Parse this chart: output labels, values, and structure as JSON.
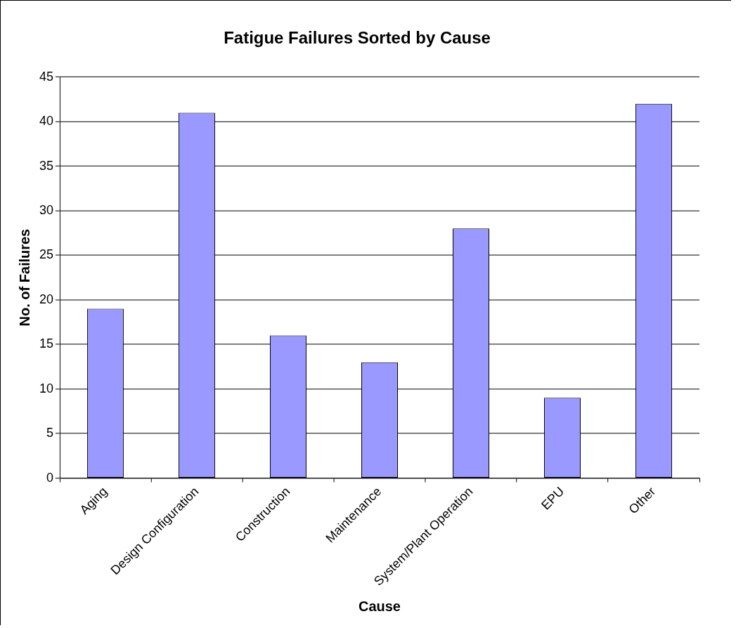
{
  "chart_data": {
    "type": "bar",
    "title": "Fatigue Failures Sorted by Cause",
    "xlabel": "Cause",
    "ylabel": "No. of Failures",
    "categories": [
      "Aging",
      "Design Configuration",
      "Construction",
      "Maintenance",
      "System/Plant Operation",
      "EPU",
      "Other"
    ],
    "values": [
      19,
      41,
      16,
      13,
      28,
      9,
      42
    ],
    "color": "#9999ff",
    "ylim": [
      0,
      45
    ],
    "yticks": [
      0,
      5,
      10,
      15,
      20,
      25,
      30,
      35,
      40,
      45
    ],
    "grid": "y",
    "legend": false
  }
}
